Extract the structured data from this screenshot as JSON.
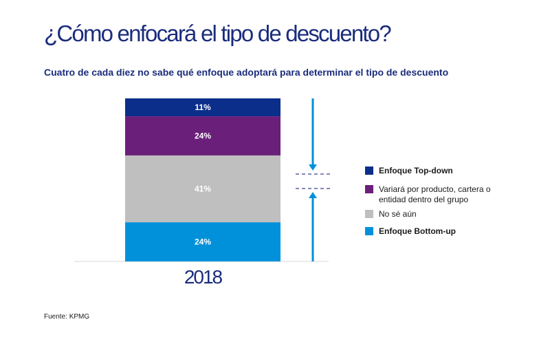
{
  "title": "¿Cómo enfocará el tipo de descuento?",
  "subtitle": "Cuatro de cada diez no sabe qué enfoque adoptará para determinar el tipo de descuento",
  "source": "Fuente: KPMG",
  "colors": {
    "title": "#1a2c7c",
    "arrow": "#0091da",
    "dash": "#3b3f8f",
    "axis": "#d9d9d9"
  },
  "chart_data": {
    "type": "bar",
    "stacked": true,
    "categories": [
      "2018"
    ],
    "unit": "%",
    "ylim": [
      0,
      100
    ],
    "series": [
      {
        "key": "top",
        "name": "Enfoque Top-down",
        "values": [
          11
        ],
        "label": "11%",
        "color": "#0a2e8a",
        "bold": true
      },
      {
        "key": "var",
        "name": "Variará por producto, cartera o entidad dentro del grupo",
        "values": [
          24
        ],
        "label": "24%",
        "color": "#6a1f7a",
        "bold": false
      },
      {
        "key": "ns",
        "name": "No sé aún",
        "values": [
          41
        ],
        "label": "41%",
        "color": "#bfbfbf",
        "bold": false
      },
      {
        "key": "bot",
        "name": "Enfoque Bottom-up",
        "values": [
          24
        ],
        "label": "24%",
        "color": "#0091da",
        "bold": true
      }
    ]
  }
}
